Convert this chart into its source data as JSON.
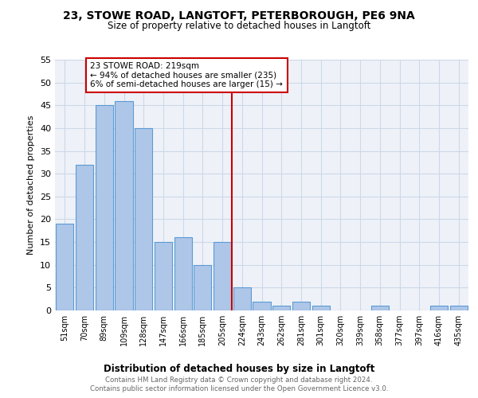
{
  "title": "23, STOWE ROAD, LANGTOFT, PETERBOROUGH, PE6 9NA",
  "subtitle": "Size of property relative to detached houses in Langtoft",
  "xlabel": "Distribution of detached houses by size in Langtoft",
  "ylabel": "Number of detached properties",
  "categories": [
    "51sqm",
    "70sqm",
    "89sqm",
    "109sqm",
    "128sqm",
    "147sqm",
    "166sqm",
    "185sqm",
    "205sqm",
    "224sqm",
    "243sqm",
    "262sqm",
    "281sqm",
    "301sqm",
    "320sqm",
    "339sqm",
    "358sqm",
    "377sqm",
    "397sqm",
    "416sqm",
    "435sqm"
  ],
  "values": [
    19,
    32,
    45,
    46,
    40,
    15,
    16,
    10,
    15,
    5,
    2,
    1,
    2,
    1,
    0,
    0,
    1,
    0,
    0,
    1,
    1
  ],
  "bar_color": "#aec6e8",
  "bar_edge_color": "#5b9bd5",
  "vline_color": "#cc0000",
  "annotation_text": "23 STOWE ROAD: 219sqm\n← 94% of detached houses are smaller (235)\n6% of semi-detached houses are larger (15) →",
  "annotation_box_color": "#cc0000",
  "grid_color": "#cdd8e8",
  "background_color": "#eef2f8",
  "ylim": [
    0,
    55
  ],
  "yticks": [
    0,
    5,
    10,
    15,
    20,
    25,
    30,
    35,
    40,
    45,
    50,
    55
  ],
  "footer_line1": "Contains HM Land Registry data © Crown copyright and database right 2024.",
  "footer_line2": "Contains public sector information licensed under the Open Government Licence v3.0."
}
